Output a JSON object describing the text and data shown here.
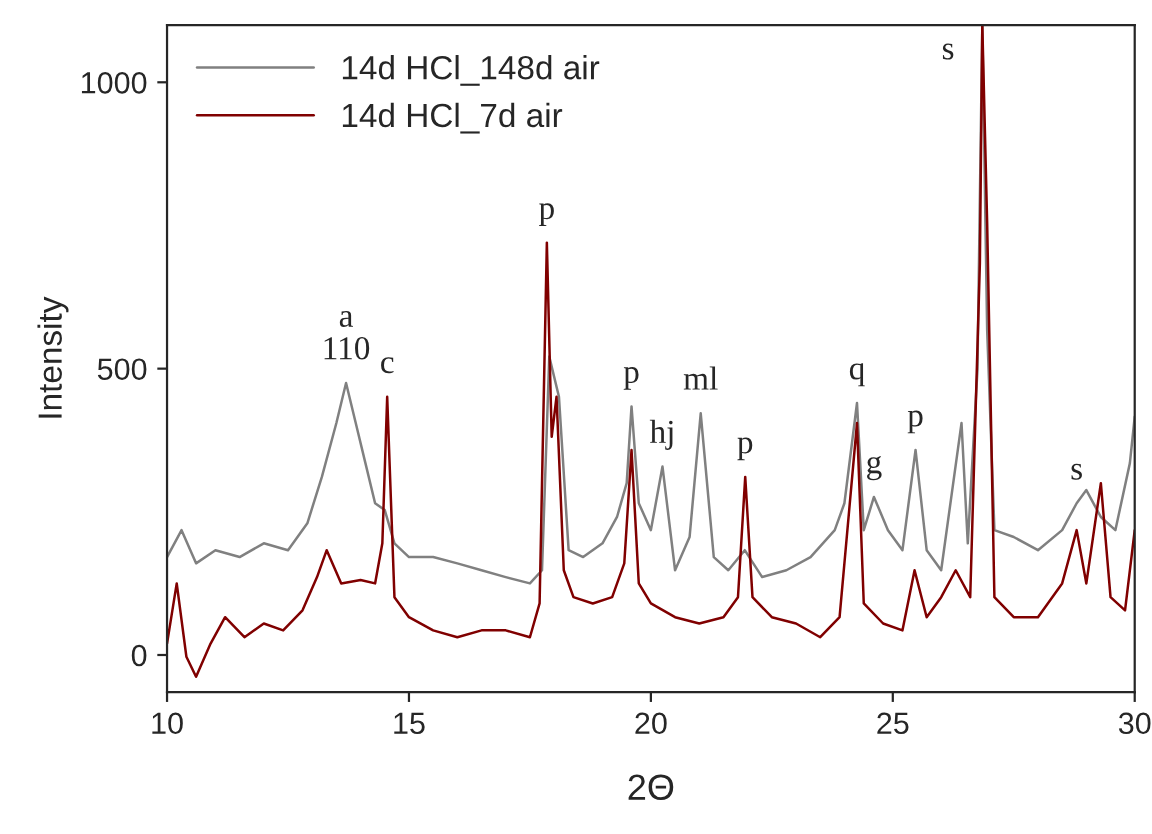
{
  "chart_data": {
    "type": "line",
    "xlabel": "2Θ",
    "ylabel": "Intensity",
    "xlim": [
      10,
      30
    ],
    "ylim": [
      -65,
      1100
    ],
    "xticks": [
      10,
      15,
      20,
      25,
      30
    ],
    "yticks": [
      0,
      500,
      1000
    ],
    "grid": false,
    "legend": "top left",
    "marker": "none",
    "line_style": "solid",
    "series": [
      {
        "name": "14d HCl_148d air",
        "color": "#808080",
        "x": [
          10.0,
          10.3,
          10.6,
          11.0,
          11.5,
          12.0,
          12.5,
          12.9,
          13.2,
          13.5,
          13.7,
          13.9,
          14.1,
          14.3,
          14.5,
          14.7,
          15.0,
          15.5,
          16.0,
          16.5,
          17.0,
          17.5,
          17.75,
          17.9,
          18.1,
          18.3,
          18.6,
          19.0,
          19.3,
          19.5,
          19.6,
          19.75,
          20.0,
          20.24,
          20.5,
          20.8,
          21.03,
          21.3,
          21.6,
          21.94,
          22.3,
          22.8,
          23.3,
          23.8,
          24.0,
          24.26,
          24.4,
          24.61,
          24.9,
          25.2,
          25.47,
          25.7,
          26.0,
          26.42,
          26.55,
          26.75,
          26.85,
          26.95,
          27.1,
          27.5,
          28.0,
          28.5,
          28.8,
          29.0,
          29.3,
          29.6,
          29.9,
          30.0
        ],
        "values": [
          171,
          218,
          160,
          183,
          171,
          195,
          183,
          230,
          311,
          405,
          475,
          405,
          335,
          265,
          253,
          195,
          171,
          171,
          160,
          148,
          136,
          125,
          148,
          521,
          451,
          183,
          171,
          195,
          241,
          300,
          434,
          265,
          218,
          329,
          148,
          206,
          422,
          171,
          148,
          183,
          136,
          148,
          171,
          218,
          265,
          440,
          218,
          276,
          218,
          183,
          358,
          183,
          148,
          405,
          195,
          498,
          1100,
          568,
          218,
          206,
          183,
          218,
          265,
          288,
          241,
          218,
          335,
          416
        ]
      },
      {
        "name": "14d HCl_7d air",
        "color": "#800000",
        "x": [
          10.0,
          10.2,
          10.4,
          10.6,
          10.9,
          11.2,
          11.6,
          12.0,
          12.4,
          12.8,
          13.1,
          13.3,
          13.6,
          14.0,
          14.3,
          14.45,
          14.55,
          14.7,
          15.0,
          15.5,
          16.0,
          16.5,
          17.0,
          17.5,
          17.7,
          17.85,
          17.95,
          18.05,
          18.2,
          18.4,
          18.8,
          19.2,
          19.45,
          19.6,
          19.75,
          20.0,
          20.5,
          21.0,
          21.5,
          21.8,
          21.95,
          22.1,
          22.5,
          23.0,
          23.5,
          23.9,
          24.26,
          24.4,
          24.8,
          25.2,
          25.45,
          25.7,
          26.0,
          26.3,
          26.6,
          26.8,
          26.85,
          26.95,
          27.1,
          27.5,
          28.0,
          28.5,
          28.8,
          29.0,
          29.3,
          29.5,
          29.8,
          30.0
        ],
        "values": [
          20,
          125,
          -3,
          -38,
          20,
          66,
          31,
          55,
          43,
          78,
          136,
          183,
          125,
          131,
          125,
          195,
          451,
          101,
          66,
          43,
          31,
          43,
          43,
          31,
          90,
          720,
          381,
          451,
          148,
          101,
          90,
          101,
          160,
          358,
          125,
          90,
          66,
          55,
          66,
          101,
          311,
          101,
          66,
          55,
          31,
          66,
          405,
          90,
          55,
          43,
          148,
          66,
          101,
          148,
          101,
          685,
          1100,
          755,
          101,
          66,
          66,
          125,
          218,
          125,
          300,
          101,
          78,
          218
        ]
      }
    ],
    "annotations": [
      {
        "text": "a\n110",
        "x": 13.7,
        "y": 475
      },
      {
        "text": "c",
        "x": 14.55,
        "y": 451
      },
      {
        "text": "p",
        "x": 17.85,
        "y": 720
      },
      {
        "text": "p",
        "x": 19.6,
        "y": 434
      },
      {
        "text": "hj",
        "x": 20.24,
        "y": 329
      },
      {
        "text": "ml",
        "x": 21.03,
        "y": 422
      },
      {
        "text": "p",
        "x": 21.95,
        "y": 311
      },
      {
        "text": "q",
        "x": 24.26,
        "y": 440
      },
      {
        "text": "g",
        "x": 24.61,
        "y": 276
      },
      {
        "text": "p",
        "x": 25.47,
        "y": 358
      },
      {
        "text": "s",
        "x": 26.85,
        "y": 1100
      },
      {
        "text": "s",
        "x": 28.8,
        "y": 265
      }
    ]
  }
}
